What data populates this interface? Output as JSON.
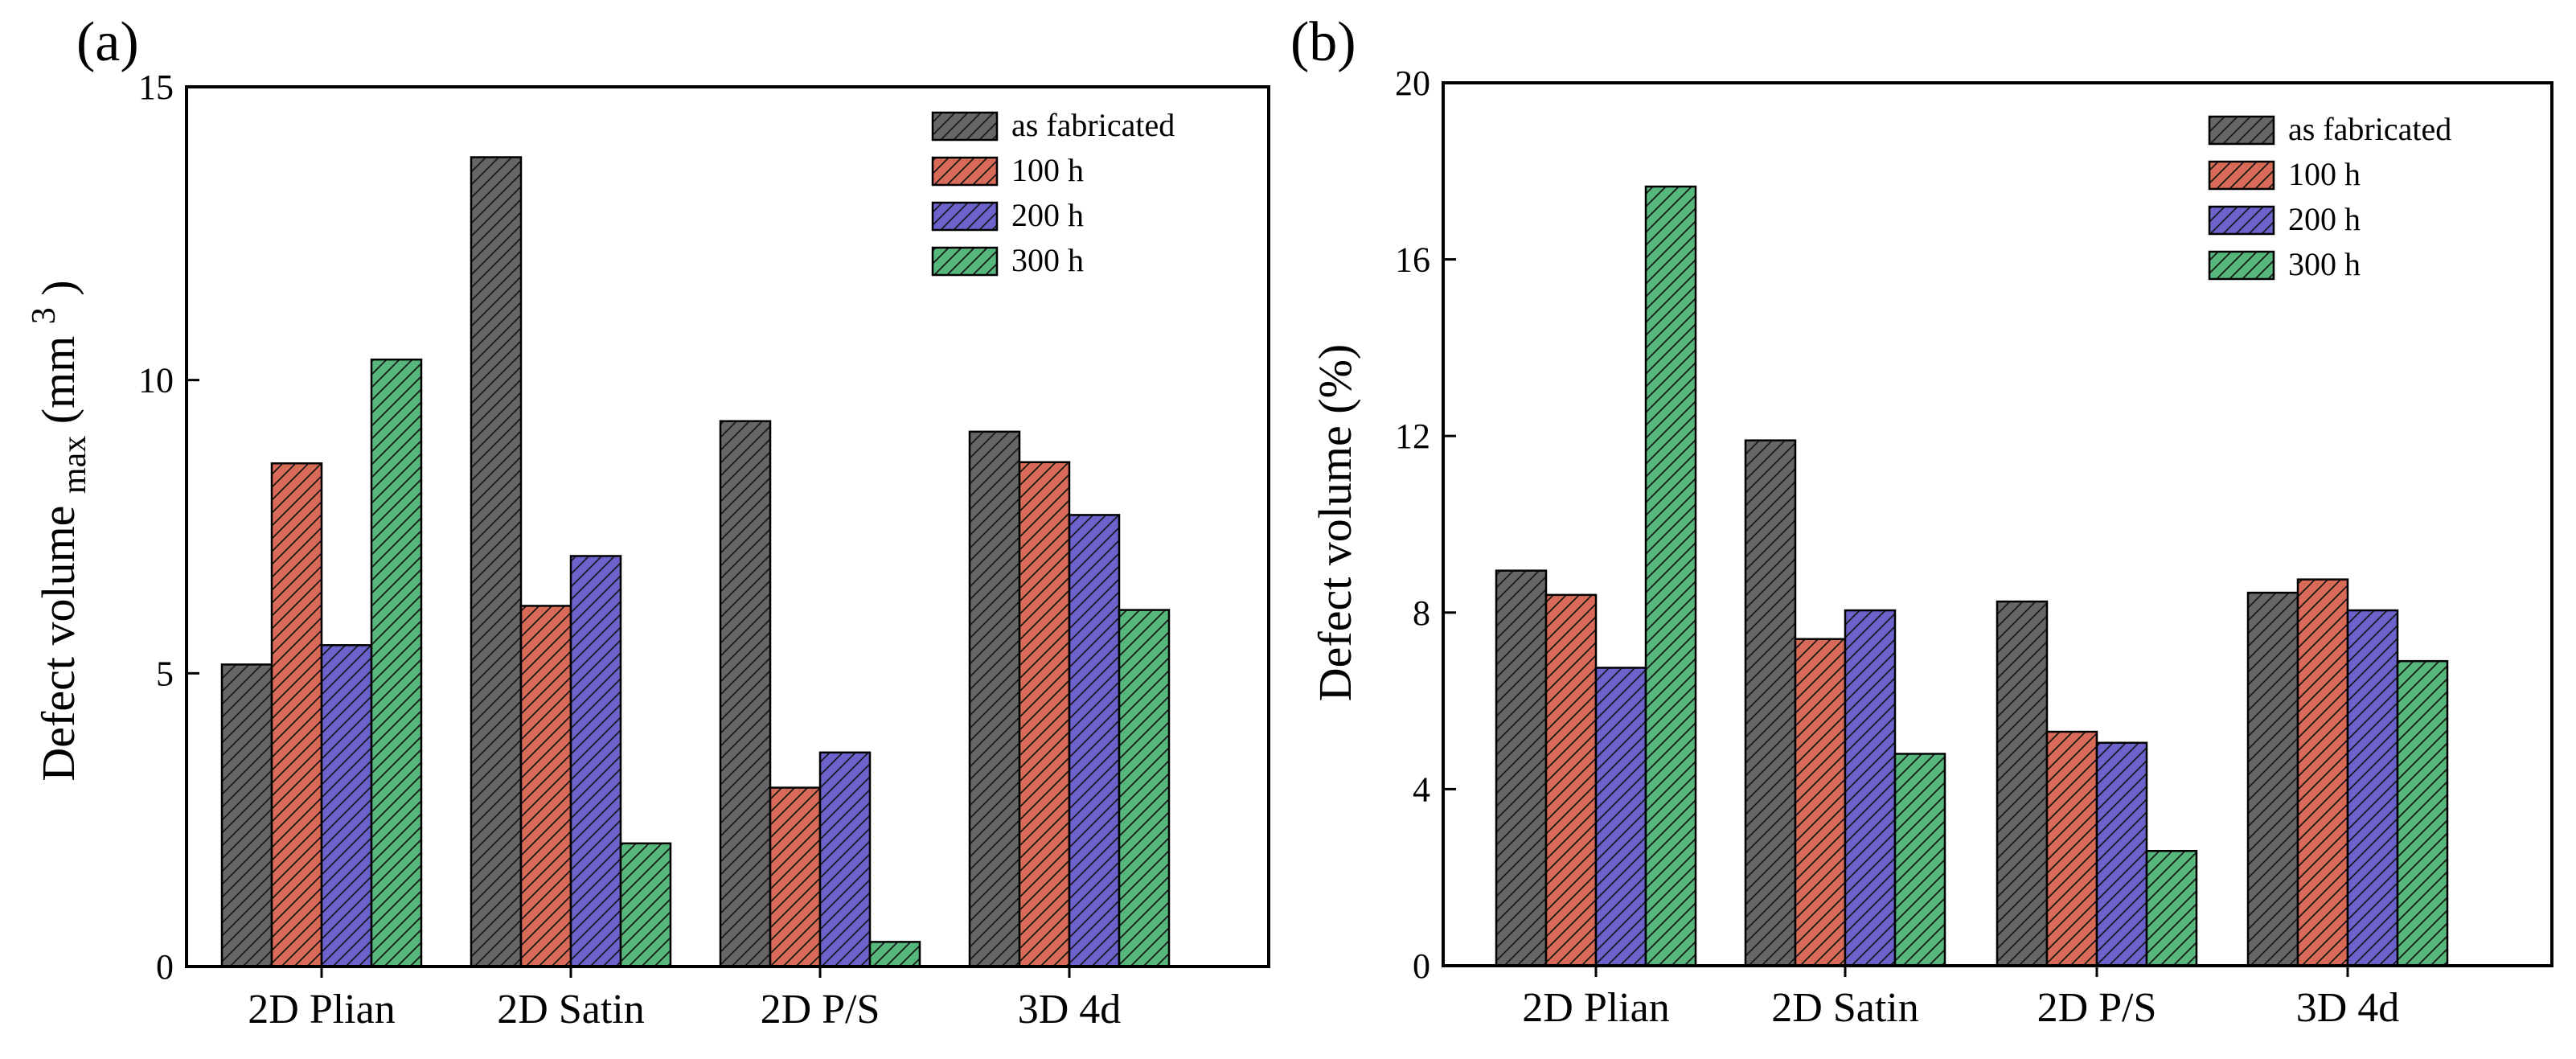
{
  "chart_data": [
    {
      "panel_label": "(a)",
      "type": "bar",
      "xlabel": "",
      "ylabel": "Defect volume",
      "ylabel_subscript": "max",
      "ylabel_unit_open": "(mm",
      "ylabel_unit_sup": "3",
      "ylabel_unit_close": ")",
      "ylim": [
        0,
        15
      ],
      "yticks": [
        0,
        5,
        10,
        15
      ],
      "ytick_labels": [
        "0",
        "5",
        "10",
        "15"
      ],
      "categories": [
        "2D Plian",
        "2D Satin",
        "2D P/S",
        "3D 4d"
      ],
      "legend_position": "top-right",
      "series": [
        {
          "name": "as fabricated",
          "color": "#666666",
          "values": [
            5.15,
            13.8,
            9.3,
            9.12
          ]
        },
        {
          "name": "100 h",
          "color": "#d96a57",
          "values": [
            8.58,
            6.15,
            3.05,
            8.6
          ]
        },
        {
          "name": "200 h",
          "color": "#6b62cc",
          "values": [
            5.48,
            7.0,
            3.65,
            7.7
          ]
        },
        {
          "name": "300 h",
          "color": "#57b67b",
          "values": [
            10.35,
            2.1,
            0.42,
            6.08
          ]
        }
      ]
    },
    {
      "panel_label": "(b)",
      "type": "bar",
      "xlabel": "",
      "ylabel": "Defect volume (%)",
      "ylim": [
        0,
        20
      ],
      "yticks": [
        0,
        4,
        8,
        12,
        16,
        20
      ],
      "ytick_labels": [
        "0",
        "4",
        "8",
        "12",
        "16",
        "20"
      ],
      "categories": [
        "2D Plian",
        "2D Satin",
        "2D P/S",
        "3D 4d"
      ],
      "legend_position": "top-right",
      "series": [
        {
          "name": "as fabricated",
          "color": "#666666",
          "values": [
            8.95,
            11.9,
            8.25,
            8.45
          ]
        },
        {
          "name": "100 h",
          "color": "#d96a57",
          "values": [
            8.4,
            7.4,
            5.3,
            8.75
          ]
        },
        {
          "name": "200 h",
          "color": "#6b62cc",
          "values": [
            6.75,
            8.05,
            5.05,
            8.05
          ]
        },
        {
          "name": "300 h",
          "color": "#57b67b",
          "values": [
            17.65,
            4.8,
            2.6,
            6.9
          ]
        }
      ]
    }
  ]
}
